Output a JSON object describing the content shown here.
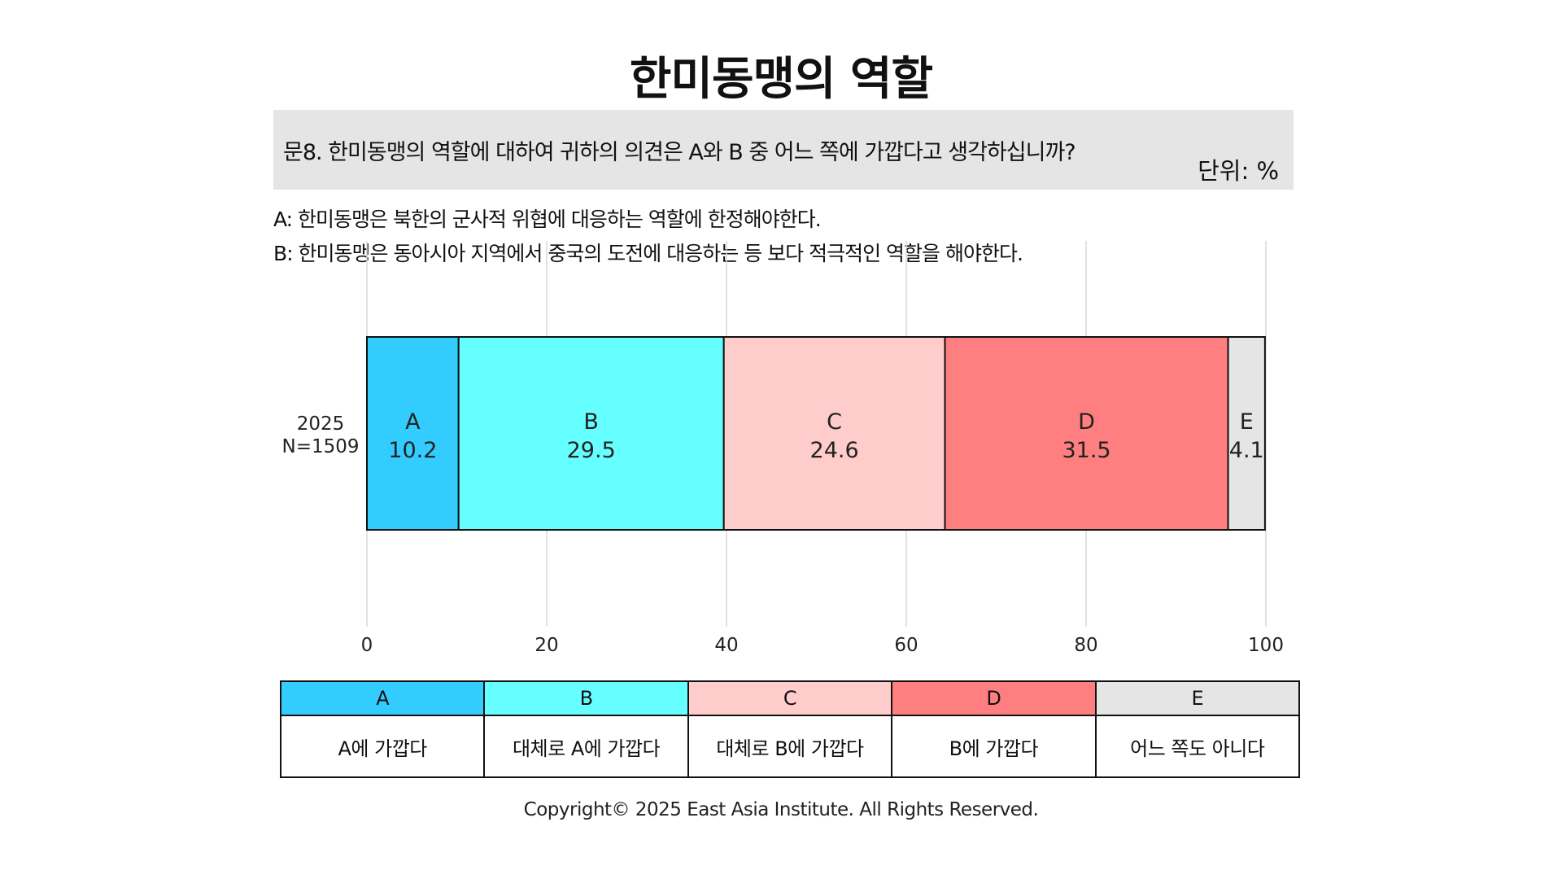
{
  "title": "한미동맹의 역할",
  "question": "문8. 한미동맹의 역할에 대하여 귀하의 의견은 A와 B 중 어느 쪽에 가깝다고 생각하십니까?",
  "unit": "단위: %",
  "definitions": {
    "a": "A: 한미동맹은 북한의 군사적 위협에 대응하는 역할에 한정해야한다.",
    "b": "B: 한미동맹은 동아시아 지역에서 중국의 도전에 대응하는 등 보다 적극적인 역할을 해야한다."
  },
  "legend": {
    "keys": [
      "A",
      "B",
      "C",
      "D",
      "E"
    ],
    "labels": [
      "A에 가깝다",
      "대체로 A에 가깝다",
      "대체로 B에 가깝다",
      "B에 가깝다",
      "어느 쪽도 아니다"
    ]
  },
  "footer": "Copyright© 2025 East Asia Institute. All Rights Reserved.",
  "colors": {
    "A": "#33ccff",
    "B": "#66ffff",
    "C": "#ffcccc",
    "D": "#ff7f80",
    "E": "#e5e5e5"
  },
  "chart_data": {
    "type": "bar",
    "orientation": "horizontal-stacked",
    "categories": [
      "2025\nN=1509"
    ],
    "row_label_line1": "2025",
    "row_label_line2": "N=1509",
    "series": [
      {
        "name": "A",
        "values": [
          10.2
        ]
      },
      {
        "name": "B",
        "values": [
          29.5
        ]
      },
      {
        "name": "C",
        "values": [
          24.6
        ]
      },
      {
        "name": "D",
        "values": [
          31.5
        ]
      },
      {
        "name": "E",
        "values": [
          4.1
        ]
      }
    ],
    "xlim": [
      0,
      100
    ],
    "xticks": [
      0,
      20,
      40,
      60,
      80,
      100
    ],
    "grid": true
  }
}
